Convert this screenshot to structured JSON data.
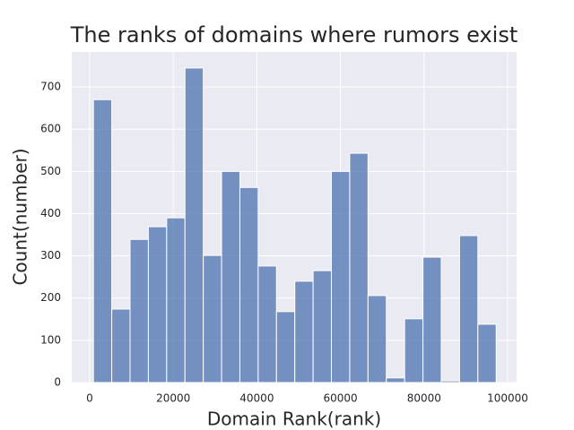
{
  "chart_data": {
    "type": "histogram",
    "title": "The ranks of domains where rumors exist",
    "x_label": "Domain Rank(rank)",
    "y_label": "Count(number)",
    "bins": [
      900,
      5280,
      9660,
      14040,
      18420,
      22800,
      27180,
      31560,
      35940,
      40320,
      44700,
      49080,
      53460,
      57840,
      62220,
      66600,
      70980,
      75360,
      79740,
      84120,
      88500,
      92880,
      97260
    ],
    "values": [
      670,
      174,
      339,
      369,
      390,
      745,
      301,
      500,
      462,
      276,
      168,
      240,
      265,
      500,
      543,
      206,
      11,
      151,
      297,
      4,
      348,
      138
    ],
    "color": "#4c72b0",
    "xlim": [
      -4290,
      102150
    ],
    "ylim": [
      0,
      783
    ],
    "xticks": [
      0,
      20000,
      40000,
      60000,
      80000,
      100000
    ],
    "yticks": [
      0,
      100,
      200,
      300,
      400,
      500,
      600,
      700
    ],
    "grid": true
  }
}
